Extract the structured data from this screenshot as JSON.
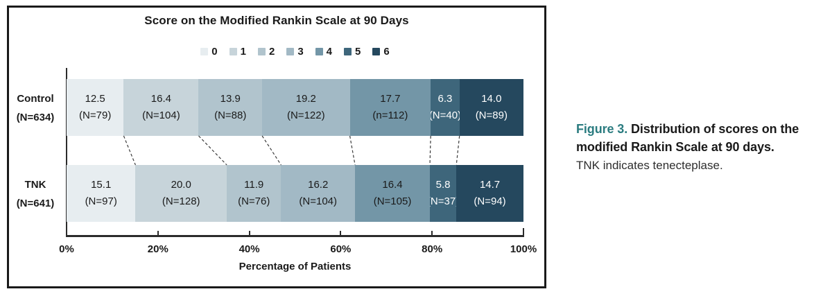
{
  "figure": {
    "title": "Score on the Modified Rankin Scale at 90 Days",
    "x_axis_title": "Percentage of Patients"
  },
  "caption": {
    "figure_label": "Figure 3.",
    "title_rest_line1": "Distribution of scores on the",
    "title_line2": "modified Rankin Scale at 90 days.",
    "note": "TNK indicates tenecteplase."
  },
  "chart_data": {
    "type": "bar",
    "subtype": "horizontal-stacked",
    "title": "Score on the Modified Rankin Scale at 90 Days",
    "xlabel": "Percentage of Patients",
    "xlim": [
      0,
      100
    ],
    "x_tick_labels": [
      "0%",
      "20%",
      "40%",
      "60%",
      "80%",
      "100%"
    ],
    "legend_position": "top",
    "grid": false,
    "categories": [
      "0",
      "1",
      "2",
      "3",
      "4",
      "5",
      "6"
    ],
    "legend": [
      {
        "label": "0",
        "color": "#e7edf0",
        "text_color": "#1a1a1a"
      },
      {
        "label": "1",
        "color": "#c7d4da",
        "text_color": "#1a1a1a"
      },
      {
        "label": "2",
        "color": "#b1c4cd",
        "text_color": "#1a1a1a"
      },
      {
        "label": "3",
        "color": "#a2b9c5",
        "text_color": "#1a1a1a"
      },
      {
        "label": "4",
        "color": "#7396a7",
        "text_color": "#1a1a1a"
      },
      {
        "label": "5",
        "color": "#3e667b",
        "text_color": "#ffffff"
      },
      {
        "label": "6",
        "color": "#25485e",
        "text_color": "#ffffff"
      }
    ],
    "rows": [
      {
        "group": "Control",
        "group_n": "(N=634)",
        "segments": [
          {
            "score": "0",
            "pct": 12.5,
            "n_label": "(N=79)"
          },
          {
            "score": "1",
            "pct": 16.4,
            "n_label": "(N=104)"
          },
          {
            "score": "2",
            "pct": 13.9,
            "n_label": "(N=88)"
          },
          {
            "score": "3",
            "pct": 19.2,
            "n_label": "(N=122)"
          },
          {
            "score": "4",
            "pct": 17.7,
            "n_label": "(n=112)"
          },
          {
            "score": "5",
            "pct": 6.3,
            "n_label": "(N=40)"
          },
          {
            "score": "6",
            "pct": 14.0,
            "n_label": "(N=89)"
          }
        ]
      },
      {
        "group": "TNK",
        "group_n": "(N=641)",
        "segments": [
          {
            "score": "0",
            "pct": 15.1,
            "n_label": "(N=97)"
          },
          {
            "score": "1",
            "pct": 20.0,
            "n_label": "(N=128)"
          },
          {
            "score": "2",
            "pct": 11.9,
            "n_label": "(N=76)"
          },
          {
            "score": "3",
            "pct": 16.2,
            "n_label": "(N=104)"
          },
          {
            "score": "4",
            "pct": 16.4,
            "n_label": "(N=105)"
          },
          {
            "score": "5",
            "pct": 5.8,
            "n_label": "(N=37)"
          },
          {
            "score": "6",
            "pct": 14.7,
            "n_label": "(N=94)"
          }
        ]
      }
    ],
    "connectors_between_rows": true
  }
}
